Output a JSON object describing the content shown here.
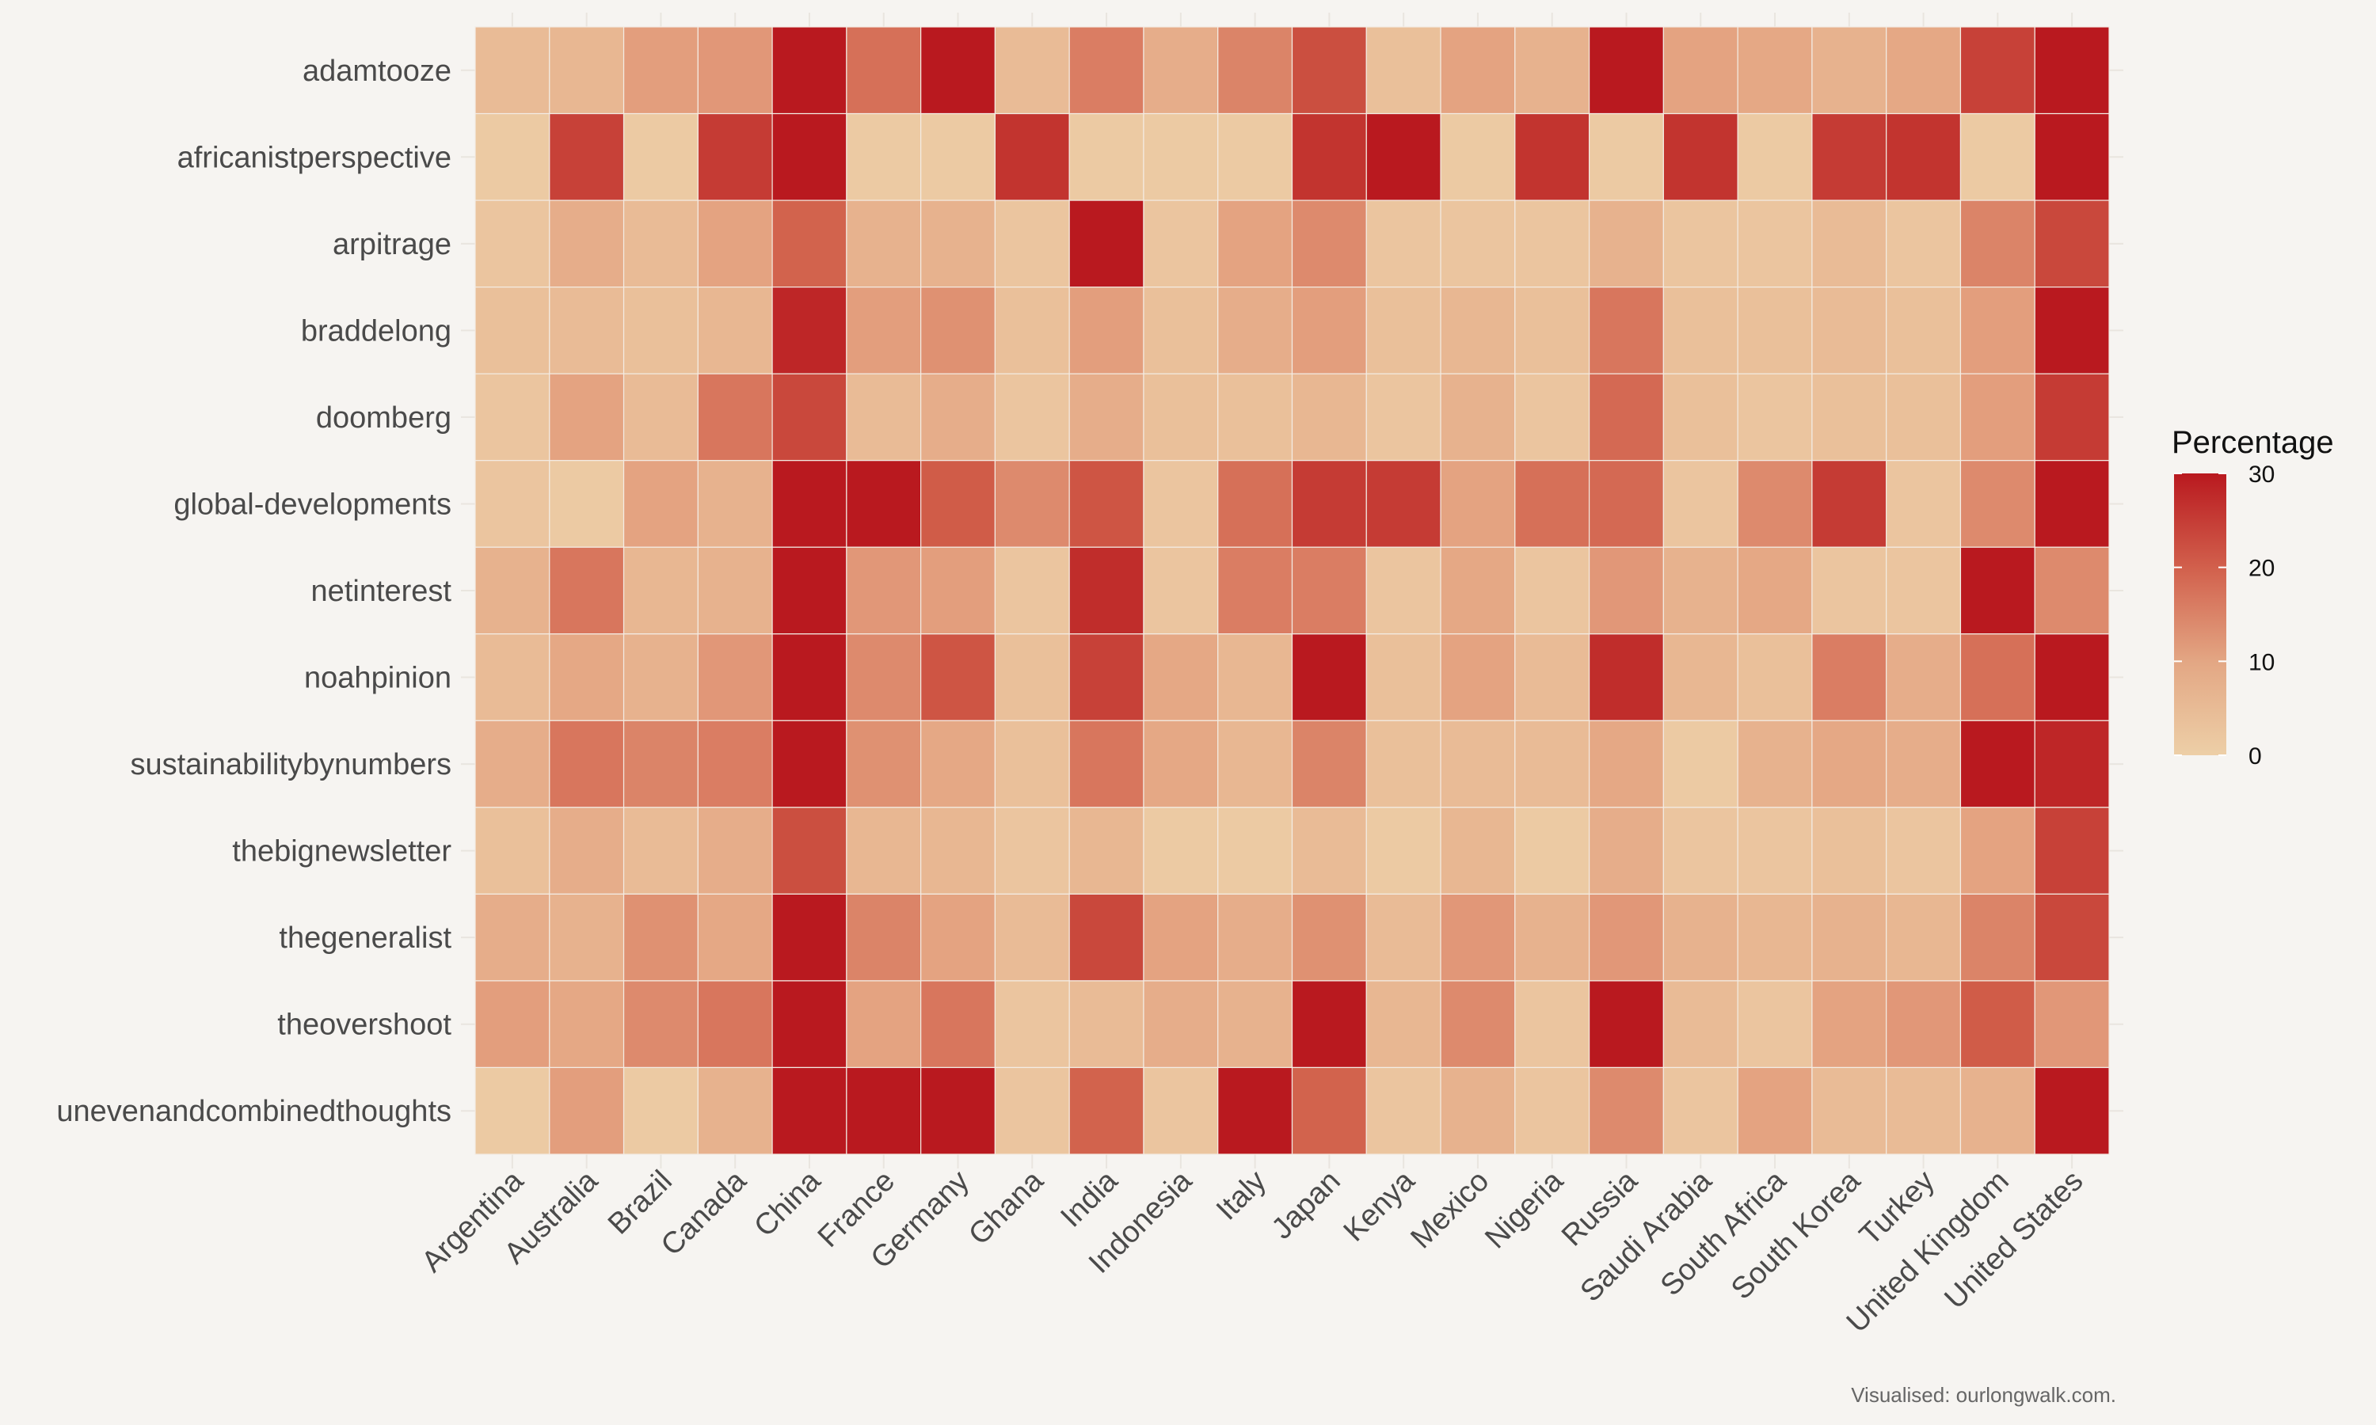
{
  "chart_data": {
    "type": "heatmap",
    "rows": [
      "adamtooze",
      "africanistperspective",
      "arpitrage",
      "braddelong",
      "doomberg",
      "global-developments",
      "netinterest",
      "noahpinion",
      "sustainabilitybynumbers",
      "thebignewsletter",
      "thegeneralist",
      "theovershoot",
      "unevenandcombinedthoughts"
    ],
    "columns": [
      "Argentina",
      "Australia",
      "Brazil",
      "Canada",
      "China",
      "France",
      "Germany",
      "Ghana",
      "India",
      "Indonesia",
      "Italy",
      "Japan",
      "Kenya",
      "Mexico",
      "Nigeria",
      "Russia",
      "Saudi Arabia",
      "South Africa",
      "South Korea",
      "Turkey",
      "United Kingdom",
      "United States"
    ],
    "values": [
      [
        4,
        5,
        10,
        11,
        30,
        17,
        30,
        4,
        15,
        7,
        14,
        22,
        3,
        9,
        6,
        30,
        9,
        8,
        6,
        8,
        24,
        30
      ],
      [
        1,
        24,
        1,
        25,
        30,
        1,
        1,
        26,
        1,
        1,
        1,
        26,
        30,
        1,
        26,
        1,
        26,
        1,
        25,
        26,
        1,
        30
      ],
      [
        2,
        7,
        4,
        9,
        19,
        6,
        6,
        2,
        30,
        2,
        9,
        13,
        2,
        2,
        2,
        6,
        2,
        2,
        4,
        2,
        14,
        23
      ],
      [
        3,
        4,
        3,
        5,
        28,
        10,
        12,
        3,
        10,
        3,
        7,
        10,
        3,
        5,
        3,
        16,
        3,
        3,
        4,
        3,
        10,
        30
      ],
      [
        2,
        9,
        4,
        16,
        23,
        4,
        7,
        2,
        7,
        3,
        3,
        5,
        2,
        6,
        2,
        18,
        3,
        2,
        3,
        3,
        10,
        25
      ],
      [
        2,
        1,
        9,
        6,
        30,
        30,
        20,
        13,
        21,
        2,
        17,
        25,
        25,
        9,
        17,
        18,
        2,
        13,
        25,
        2,
        13,
        30
      ],
      [
        6,
        16,
        5,
        6,
        30,
        11,
        10,
        2,
        27,
        2,
        15,
        15,
        2,
        8,
        2,
        11,
        6,
        8,
        2,
        2,
        30,
        13
      ],
      [
        4,
        8,
        6,
        11,
        30,
        13,
        21,
        3,
        24,
        8,
        5,
        30,
        3,
        9,
        4,
        27,
        5,
        3,
        15,
        7,
        17,
        30
      ],
      [
        7,
        16,
        14,
        15,
        30,
        12,
        8,
        3,
        16,
        8,
        5,
        14,
        3,
        4,
        4,
        8,
        1,
        6,
        8,
        7,
        30,
        28
      ],
      [
        3,
        7,
        4,
        7,
        22,
        5,
        5,
        2,
        5,
        1,
        1,
        4,
        1,
        5,
        1,
        7,
        2,
        2,
        3,
        2,
        9,
        24
      ],
      [
        7,
        6,
        12,
        8,
        30,
        14,
        9,
        4,
        23,
        9,
        7,
        12,
        4,
        11,
        6,
        11,
        6,
        5,
        6,
        5,
        14,
        23
      ],
      [
        10,
        8,
        13,
        16,
        30,
        9,
        16,
        2,
        4,
        7,
        6,
        30,
        5,
        13,
        2,
        30,
        4,
        2,
        9,
        11,
        20,
        11
      ],
      [
        1,
        10,
        1,
        6,
        30,
        30,
        30,
        2,
        19,
        2,
        30,
        19,
        2,
        6,
        2,
        13,
        2,
        9,
        4,
        4,
        6,
        30
      ]
    ],
    "legend": {
      "title": "Percentage",
      "min": 0,
      "max": 30,
      "ticks": [
        0,
        10,
        20,
        30
      ]
    },
    "colors": {
      "low": "#edcfa7",
      "mid": "#e0987b",
      "high": "#b9191f",
      "grid": "#e9e5df"
    },
    "caption": "Visualised: ourlongwalk.com."
  }
}
